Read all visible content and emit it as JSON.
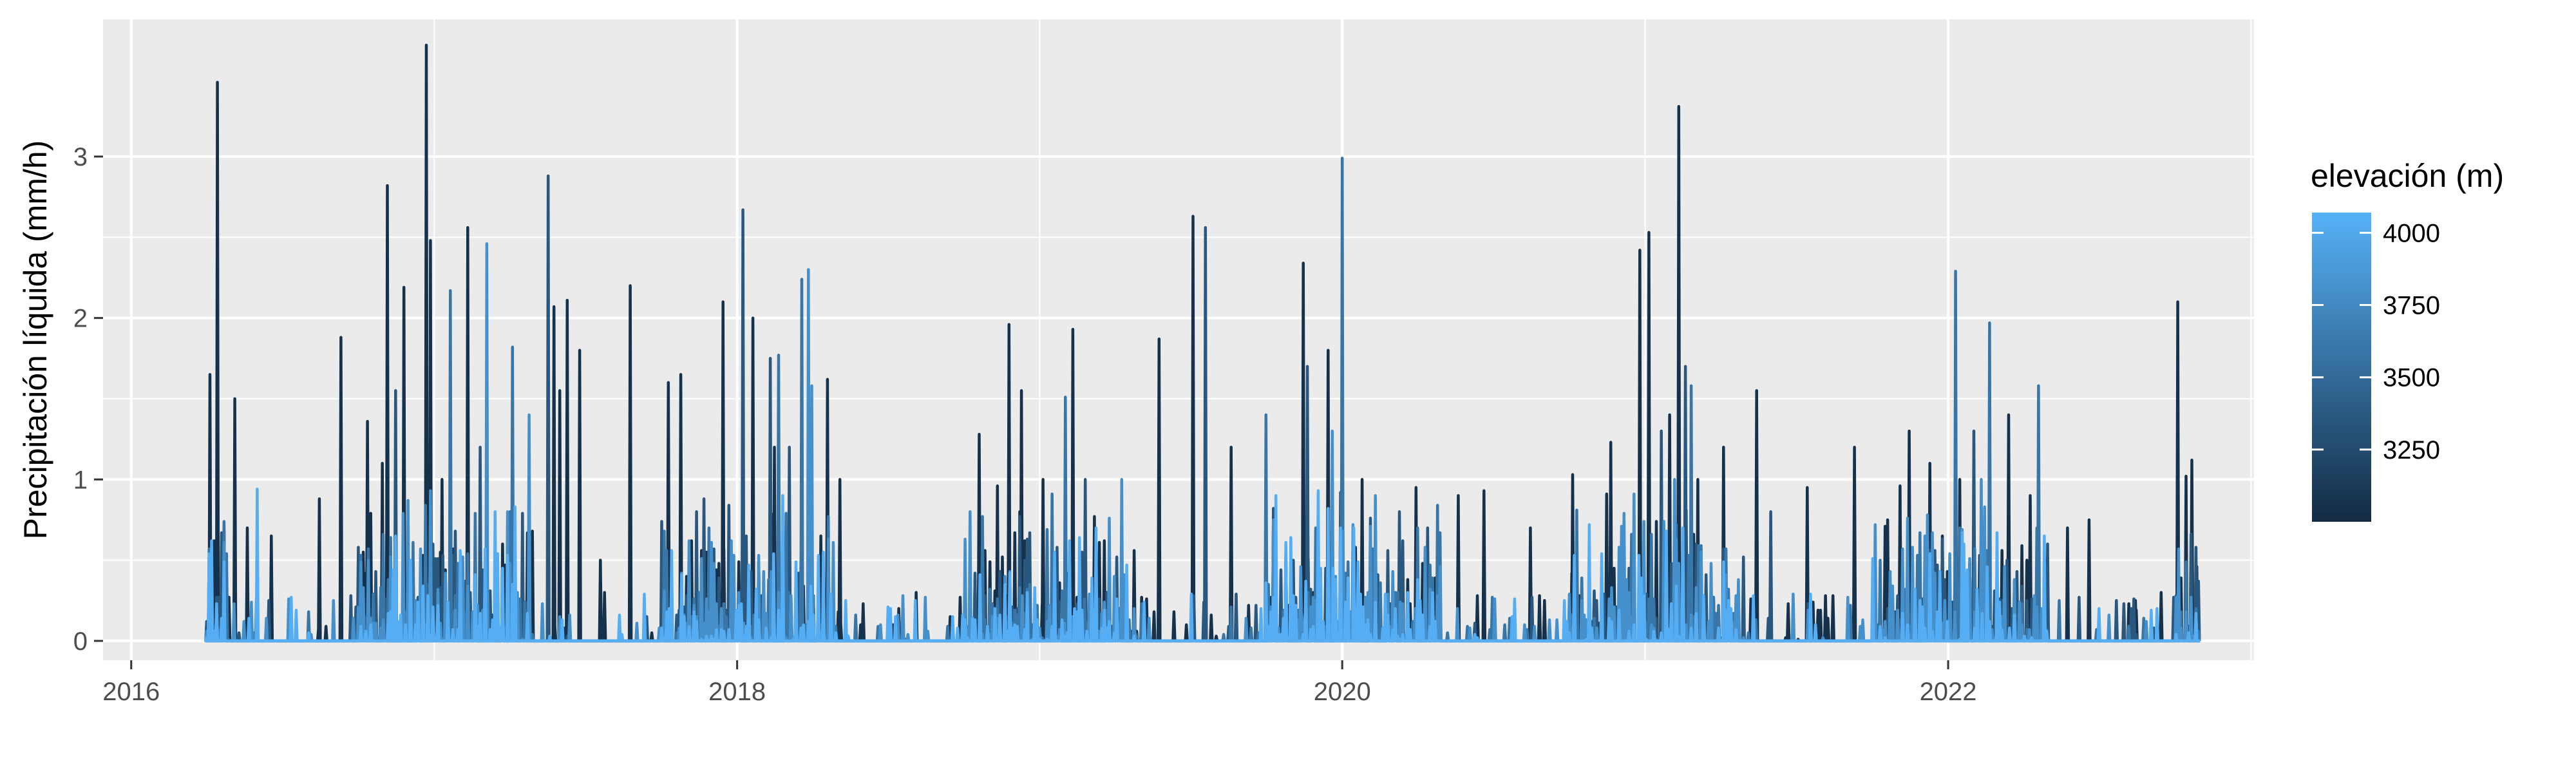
{
  "chart_data": {
    "type": "line",
    "title": "",
    "xlabel": "",
    "ylabel": "Precipitación líquida (mm/h)",
    "x_range": [
      "2015-11-28",
      "2023-01-05"
    ],
    "y_range": [
      -0.12,
      3.85
    ],
    "x_ticks": [
      {
        "value": "2016-01-01",
        "label": "2016"
      },
      {
        "value": "2018-01-01",
        "label": "2018"
      },
      {
        "value": "2020-01-01",
        "label": "2020"
      },
      {
        "value": "2022-01-01",
        "label": "2022"
      }
    ],
    "y_ticks": [
      0,
      1,
      2,
      3
    ],
    "grid": true,
    "legend": {
      "title": "elevación (m)",
      "placement": "right",
      "type": "colorbar",
      "range": [
        3000,
        4070
      ],
      "breaks": [
        3250,
        3500,
        3750,
        4000
      ],
      "color_low": "#132B43",
      "color_high": "#56B1F7"
    },
    "series": [
      {
        "elevation": 3050,
        "peaks": [
          [
            "2016-04-05",
            1.65
          ],
          [
            "2016-04-14",
            3.46
          ],
          [
            "2016-05-05",
            1.5
          ],
          [
            "2016-05-20",
            0.7
          ],
          [
            "2016-06-18",
            0.65
          ],
          [
            "2016-08-15",
            0.88
          ],
          [
            "2016-09-10",
            1.88
          ],
          [
            "2016-10-12",
            1.36
          ],
          [
            "2016-10-30",
            1.1
          ],
          [
            "2016-11-05",
            2.82
          ],
          [
            "2016-11-25",
            2.19
          ],
          [
            "2016-12-22",
            3.69
          ],
          [
            "2016-12-27",
            2.48
          ],
          [
            "2017-01-10",
            1.0
          ],
          [
            "2017-02-10",
            2.56
          ],
          [
            "2017-05-25",
            2.07
          ],
          [
            "2017-06-01",
            1.55
          ],
          [
            "2017-06-10",
            2.11
          ],
          [
            "2017-06-25",
            1.8
          ],
          [
            "2017-07-20",
            0.5
          ],
          [
            "2017-08-25",
            2.2
          ],
          [
            "2017-10-10",
            1.6
          ],
          [
            "2017-10-25",
            1.65
          ],
          [
            "2017-11-25",
            0.55
          ],
          [
            "2017-12-15",
            2.1
          ],
          [
            "2018-01-20",
            2.0
          ],
          [
            "2018-02-15",
            1.2
          ],
          [
            "2018-04-20",
            1.62
          ],
          [
            "2018-05-05",
            1.0
          ],
          [
            "2018-05-30",
            0.1
          ],
          [
            "2018-07-15",
            0.2
          ],
          [
            "2018-08-05",
            0.3
          ],
          [
            "2018-09-15",
            0.15
          ],
          [
            "2018-10-20",
            1.28
          ],
          [
            "2018-11-25",
            1.96
          ],
          [
            "2018-12-10",
            1.55
          ],
          [
            "2019-01-05",
            1.0
          ],
          [
            "2019-02-10",
            1.93
          ],
          [
            "2019-03-20",
            0.62
          ],
          [
            "2019-05-25",
            1.87
          ],
          [
            "2019-07-05",
            2.63
          ],
          [
            "2019-08-20",
            1.2
          ],
          [
            "2019-10-10",
            0.82
          ],
          [
            "2019-11-15",
            2.34
          ],
          [
            "2019-12-15",
            1.8
          ],
          [
            "2020-01-25",
            1.0
          ],
          [
            "2020-03-30",
            0.95
          ],
          [
            "2020-05-20",
            0.9
          ],
          [
            "2020-06-20",
            0.93
          ],
          [
            "2020-08-15",
            0.7
          ],
          [
            "2020-10-05",
            1.03
          ],
          [
            "2020-11-20",
            1.23
          ],
          [
            "2020-12-25",
            2.42
          ],
          [
            "2021-01-05",
            2.53
          ],
          [
            "2021-01-30",
            1.4
          ],
          [
            "2021-02-10",
            3.31
          ],
          [
            "2021-03-05",
            1.0
          ],
          [
            "2021-04-05",
            1.2
          ],
          [
            "2021-05-15",
            1.55
          ],
          [
            "2021-07-15",
            0.95
          ],
          [
            "2021-09-10",
            1.2
          ],
          [
            "2021-10-20",
            0.6
          ],
          [
            "2021-11-15",
            1.3
          ],
          [
            "2021-12-10",
            1.1
          ],
          [
            "2022-01-15",
            1.0
          ],
          [
            "2022-03-15",
            1.4
          ],
          [
            "2022-04-10",
            0.9
          ],
          [
            "2022-05-25",
            0.7
          ],
          [
            "2022-06-20",
            0.75
          ],
          [
            "2022-08-15",
            0.25
          ],
          [
            "2022-09-15",
            0.3
          ],
          [
            "2022-10-05",
            2.1
          ],
          [
            "2022-10-15",
            1.02
          ],
          [
            "2022-10-22",
            1.12
          ],
          [
            "2022-10-28",
            0.46
          ]
        ]
      },
      {
        "elevation": 3350,
        "peaks": [
          [
            "2016-11-15",
            1.55
          ],
          [
            "2017-02-25",
            1.2
          ],
          [
            "2017-05-18",
            2.88
          ],
          [
            "2018-01-08",
            2.67
          ],
          [
            "2018-02-10",
            1.75
          ],
          [
            "2018-03-05",
            1.2
          ],
          [
            "2019-02-25",
            1.0
          ],
          [
            "2019-07-20",
            2.56
          ],
          [
            "2019-11-20",
            1.7
          ],
          [
            "2020-03-10",
            0.8
          ],
          [
            "2021-01-20",
            1.3
          ],
          [
            "2021-02-18",
            1.7
          ],
          [
            "2021-06-01",
            0.8
          ],
          [
            "2022-02-01",
            1.3
          ],
          [
            "2022-05-01",
            0.6
          ]
        ]
      },
      {
        "elevation": 3600,
        "peaks": [
          [
            "2017-01-20",
            2.17
          ],
          [
            "2017-04-05",
            1.82
          ],
          [
            "2018-02-20",
            1.77
          ],
          [
            "2018-03-20",
            2.24
          ],
          [
            "2019-02-01",
            1.51
          ],
          [
            "2019-10-01",
            1.4
          ],
          [
            "2020-01-01",
            2.99
          ],
          [
            "2021-02-25",
            1.58
          ],
          [
            "2022-01-10",
            2.29
          ],
          [
            "2022-02-20",
            1.97
          ],
          [
            "2022-04-20",
            1.58
          ]
        ]
      },
      {
        "elevation": 3800,
        "peaks": [
          [
            "2017-03-05",
            2.46
          ],
          [
            "2017-04-25",
            1.4
          ],
          [
            "2018-03-28",
            2.3
          ],
          [
            "2018-04-01",
            1.58
          ],
          [
            "2019-04-10",
            1.0
          ],
          [
            "2019-12-20",
            1.3
          ],
          [
            "2020-02-10",
            0.9
          ],
          [
            "2021-02-05",
            1.0
          ],
          [
            "2022-02-10",
            1.0
          ]
        ]
      },
      {
        "elevation": 4050,
        "peaks": [
          [
            "2016-06-01",
            0.94
          ],
          [
            "2017-03-15",
            0.8
          ],
          [
            "2018-02-25",
            0.9
          ],
          [
            "2019-03-10",
            0.7
          ],
          [
            "2020-01-15",
            0.7
          ],
          [
            "2021-02-15",
            0.7
          ],
          [
            "2022-01-20",
            0.6
          ],
          [
            "2022-09-10",
            0.2
          ]
        ]
      }
    ]
  }
}
